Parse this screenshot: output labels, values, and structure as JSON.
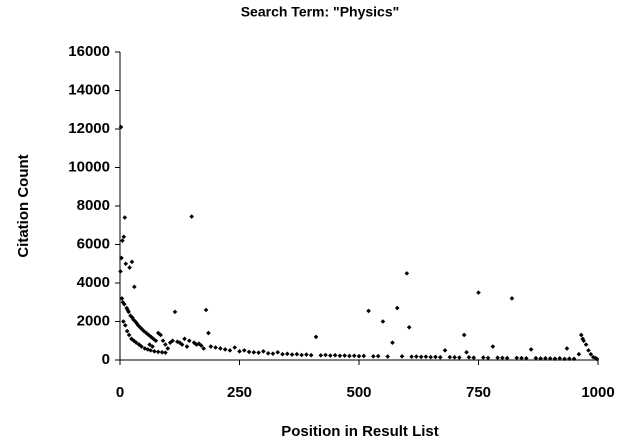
{
  "chart_data": {
    "type": "scatter",
    "title": "Search Term: \"Physics\"",
    "x_label": "Position in Result List",
    "y_label": "Citation Count",
    "color": "#000000",
    "grid": false,
    "xlim": [
      0,
      1000
    ],
    "xticks": [
      0,
      250,
      500,
      750,
      1000
    ],
    "ylim": [
      0,
      16000
    ],
    "yticks": [
      0,
      2000,
      4000,
      6000,
      8000,
      10000,
      12000,
      14000,
      16000
    ],
    "x": [
      1,
      2,
      3,
      5,
      8,
      10,
      12,
      20,
      25,
      30,
      4,
      6,
      9,
      14,
      16,
      18,
      22,
      26,
      28,
      32,
      35,
      38,
      42,
      46,
      50,
      55,
      60,
      65,
      70,
      75,
      7,
      11,
      15,
      19,
      24,
      29,
      34,
      40,
      45,
      52,
      58,
      64,
      72,
      80,
      88,
      95,
      100,
      105,
      110,
      120,
      80,
      85,
      90,
      95,
      130,
      140,
      160,
      170,
      190,
      200,
      115,
      150,
      180,
      185,
      210,
      220,
      230,
      240,
      250,
      260,
      270,
      280,
      290,
      300,
      310,
      320,
      330,
      340,
      350,
      360,
      370,
      380,
      390,
      400,
      410,
      420,
      430,
      440,
      450,
      460,
      470,
      480,
      490,
      500,
      510,
      520,
      530,
      540,
      550,
      560,
      570,
      580,
      590,
      600,
      605,
      610,
      620,
      630,
      640,
      650,
      660,
      670,
      680,
      690,
      700,
      710,
      720,
      725,
      730,
      740,
      750,
      760,
      770,
      780,
      790,
      800,
      810,
      820,
      830,
      840,
      850,
      860,
      870,
      880,
      890,
      900,
      910,
      920,
      930,
      935,
      940,
      950,
      960,
      965,
      968,
      970,
      975,
      980,
      985,
      990,
      995,
      998,
      62,
      68,
      125,
      135,
      145,
      155,
      165,
      175
    ],
    "y": [
      4600,
      12100,
      5300,
      6200,
      6400,
      7400,
      5000,
      4800,
      5100,
      3800,
      3200,
      3000,
      2900,
      2700,
      2600,
      2500,
      2300,
      2200,
      2100,
      2000,
      1900,
      1800,
      1700,
      1600,
      1500,
      1400,
      1300,
      1200,
      1100,
      1000,
      2000,
      1800,
      1500,
      1300,
      1100,
      1000,
      900,
      800,
      700,
      600,
      550,
      500,
      450,
      420,
      400,
      380,
      600,
      900,
      1000,
      950,
      1400,
      1300,
      1000,
      800,
      800,
      700,
      800,
      750,
      700,
      650,
      2500,
      7450,
      2600,
      1400,
      600,
      550,
      500,
      650,
      450,
      500,
      420,
      400,
      380,
      450,
      350,
      330,
      400,
      300,
      320,
      280,
      300,
      260,
      280,
      250,
      1200,
      240,
      260,
      230,
      250,
      220,
      230,
      210,
      220,
      200,
      210,
      2550,
      190,
      200,
      2000,
      180,
      900,
      2700,
      190,
      4500,
      1700,
      170,
      180,
      160,
      170,
      150,
      160,
      140,
      500,
      150,
      140,
      130,
      1300,
      400,
      140,
      120,
      3500,
      130,
      110,
      700,
      120,
      110,
      100,
      3200,
      110,
      100,
      90,
      550,
      100,
      80,
      90,
      80,
      70,
      90,
      60,
      600,
      70,
      60,
      300,
      1300,
      1100,
      1000,
      800,
      500,
      300,
      150,
      100,
      50,
      800,
      700,
      900,
      1100,
      1000,
      900,
      850,
      600
    ]
  }
}
